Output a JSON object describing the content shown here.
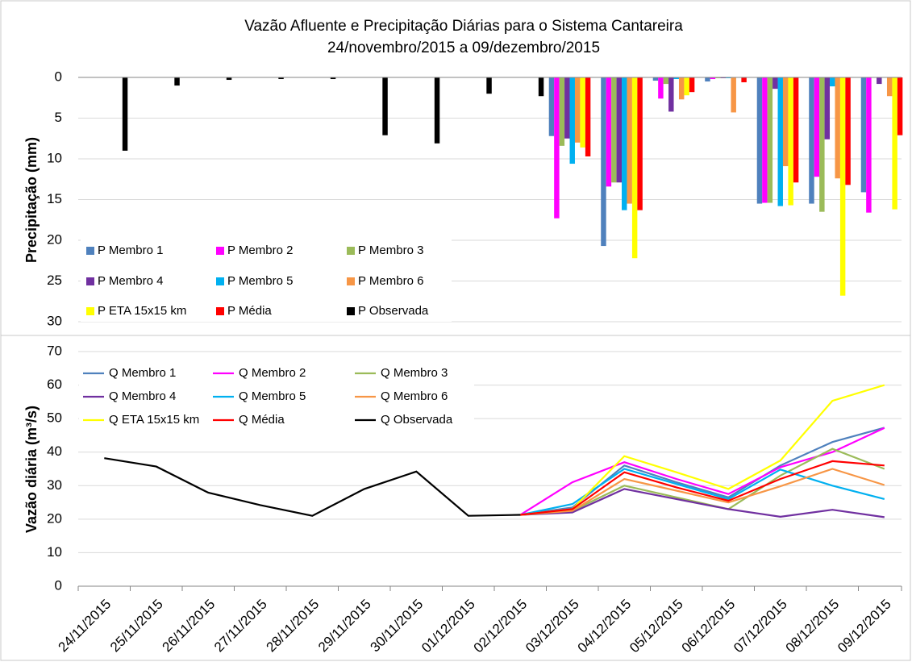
{
  "chart_data": [
    {
      "type": "bar",
      "title": "Vazão Afluente e Precipitação Diárias para o Sistema Cantareira",
      "subtitle": "24/novembro/2015 a  09/dezembro/2015",
      "ylabel": "Precipitação (mm)",
      "ylim": [
        0,
        30
      ],
      "inverted": true,
      "yticks": [
        0,
        5,
        10,
        15,
        20,
        25,
        30
      ],
      "grid": true,
      "legend": "lower left",
      "series": [
        {
          "name": "P Membro 1",
          "color": "#4f81bd",
          "values": [
            null,
            null,
            null,
            null,
            null,
            null,
            null,
            null,
            null,
            7.2,
            20.7,
            0.4,
            0.5,
            15.5,
            15.5,
            14.1
          ]
        },
        {
          "name": "P Membro 2",
          "color": "#ff00ff",
          "values": [
            null,
            null,
            null,
            null,
            null,
            null,
            null,
            null,
            null,
            17.3,
            13.4,
            2.6,
            0.2,
            15.4,
            12.2,
            16.6
          ]
        },
        {
          "name": "P Membro 3",
          "color": "#9bbb59",
          "values": [
            null,
            null,
            null,
            null,
            null,
            null,
            null,
            null,
            null,
            8.4,
            12.9,
            0.8,
            0.1,
            15.4,
            16.5,
            0
          ]
        },
        {
          "name": "P Membro 4",
          "color": "#7030a0",
          "values": [
            null,
            null,
            null,
            null,
            null,
            null,
            null,
            null,
            null,
            7.5,
            12.9,
            4.2,
            0.1,
            1.4,
            7.6,
            0.8
          ]
        },
        {
          "name": "P Membro 5",
          "color": "#00b0f0",
          "values": [
            null,
            null,
            null,
            null,
            null,
            null,
            null,
            null,
            null,
            10.6,
            16.3,
            0.2,
            0.1,
            15.8,
            1.1,
            0
          ]
        },
        {
          "name": "P Membro 6",
          "color": "#f79646",
          "values": [
            null,
            null,
            null,
            null,
            null,
            null,
            null,
            null,
            null,
            8.0,
            15.5,
            2.7,
            4.3,
            10.9,
            12.4,
            2.3
          ]
        },
        {
          "name": "P ETA 15x15 km",
          "color": "#ffff00",
          "values": [
            null,
            null,
            null,
            null,
            null,
            null,
            null,
            null,
            null,
            8.6,
            22.2,
            2.2,
            0,
            15.7,
            26.8,
            16.2
          ]
        },
        {
          "name": "P Média",
          "color": "#ff0000",
          "values": [
            null,
            null,
            null,
            null,
            null,
            null,
            null,
            null,
            null,
            9.7,
            16.3,
            1.8,
            0.6,
            12.9,
            13.2,
            7.1
          ]
        },
        {
          "name": "P Observada",
          "color": "#000000",
          "values": [
            9.0,
            1.0,
            0.3,
            0.2,
            0.2,
            7.1,
            8.1,
            2.0,
            2.3,
            null,
            null,
            null,
            null,
            null,
            null,
            null
          ]
        }
      ]
    },
    {
      "type": "line",
      "ylabel": "Vazão diária (m³/s)",
      "categories": [
        "24/11/2015",
        "25/11/2015",
        "26/11/2015",
        "27/11/2015",
        "28/11/2015",
        "29/11/2015",
        "30/11/2015",
        "01/12/2015",
        "02/12/2015",
        "03/12/2015",
        "04/12/2015",
        "05/12/2015",
        "06/12/2015",
        "07/12/2015",
        "08/12/2015",
        "09/12/2015"
      ],
      "ylim": [
        0,
        70
      ],
      "yticks": [
        0,
        10,
        20,
        30,
        40,
        50,
        60,
        70
      ],
      "grid": true,
      "legend": "upper left",
      "series": [
        {
          "name": "Q Membro 1",
          "color": "#4f81bd",
          "values": [
            null,
            null,
            null,
            null,
            null,
            null,
            null,
            null,
            21.3,
            23.5,
            36.0,
            31.0,
            26.5,
            36.0,
            43.0,
            47.3
          ]
        },
        {
          "name": "Q Membro 2",
          "color": "#ff00ff",
          "values": [
            null,
            null,
            null,
            null,
            null,
            null,
            null,
            null,
            21.3,
            31.0,
            37.0,
            32.0,
            27.5,
            35.5,
            40.0,
            47.2
          ]
        },
        {
          "name": "Q Membro 3",
          "color": "#9bbb59",
          "values": [
            null,
            null,
            null,
            null,
            null,
            null,
            null,
            null,
            21.3,
            22.5,
            30.0,
            26.5,
            23.0,
            33.0,
            41.0,
            35.0
          ]
        },
        {
          "name": "Q Membro 4",
          "color": "#7030a0",
          "values": [
            null,
            null,
            null,
            null,
            null,
            null,
            null,
            null,
            21.3,
            22.0,
            29.0,
            26.0,
            23.0,
            20.7,
            22.8,
            20.6
          ]
        },
        {
          "name": "Q Membro 5",
          "color": "#00b0f0",
          "values": [
            null,
            null,
            null,
            null,
            null,
            null,
            null,
            null,
            21.3,
            24.5,
            35.0,
            30.5,
            26.0,
            34.8,
            30.0,
            26.0
          ]
        },
        {
          "name": "Q Membro 6",
          "color": "#f79646",
          "values": [
            null,
            null,
            null,
            null,
            null,
            null,
            null,
            null,
            21.3,
            22.5,
            32.0,
            28.5,
            25.0,
            29.8,
            35.0,
            30.2
          ]
        },
        {
          "name": "Q ETA 15x15 km",
          "color": "#ffff00",
          "values": [
            null,
            null,
            null,
            null,
            null,
            null,
            null,
            null,
            21.3,
            23.0,
            38.8,
            34.0,
            29.0,
            37.5,
            55.3,
            60.0
          ]
        },
        {
          "name": "Q Média",
          "color": "#ff0000",
          "values": [
            null,
            null,
            null,
            null,
            null,
            null,
            null,
            null,
            21.3,
            23.0,
            34.0,
            29.5,
            25.5,
            32.0,
            37.3,
            36.0
          ]
        },
        {
          "name": "Q Observada",
          "color": "#000000",
          "values": [
            38.2,
            35.7,
            27.9,
            24.2,
            21.0,
            29.0,
            34.2,
            21.0,
            21.3,
            null,
            null,
            null,
            null,
            null,
            null,
            null
          ]
        }
      ]
    }
  ]
}
